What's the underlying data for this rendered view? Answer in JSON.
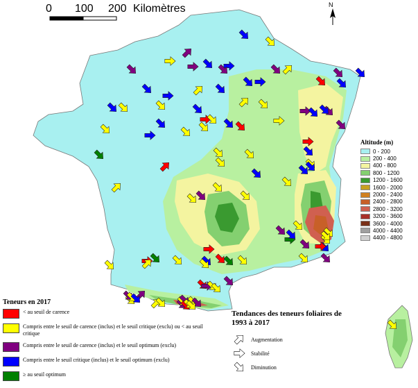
{
  "scale": {
    "ticks": [
      "0",
      "100",
      "200"
    ],
    "unit": "Kilomètres"
  },
  "north_label": "N",
  "altitude_legend": {
    "title": "Altitude (m)",
    "classes": [
      {
        "label": "0 - 200",
        "color": "#a8f0f0"
      },
      {
        "label": "200 - 400",
        "color": "#b8f0a0"
      },
      {
        "label": "400 - 800",
        "color": "#f4f4a0"
      },
      {
        "label": "800 - 1200",
        "color": "#84d070"
      },
      {
        "label": "1200 - 1600",
        "color": "#3a9a30"
      },
      {
        "label": "1600 - 2000",
        "color": "#c8a020"
      },
      {
        "label": "2000 - 2400",
        "color": "#d08020"
      },
      {
        "label": "2400 - 2800",
        "color": "#c86028"
      },
      {
        "label": "2800 - 3200",
        "color": "#d06050"
      },
      {
        "label": "3200 - 3600",
        "color": "#a83028"
      },
      {
        "label": "3600 - 4000",
        "color": "#7a3018"
      },
      {
        "label": "4000 - 4400",
        "color": "#a0a0a0"
      },
      {
        "label": "4400 - 4800",
        "color": "#d0d0d0"
      }
    ]
  },
  "category_legend": {
    "title": "Teneurs en 2017",
    "items": [
      {
        "key": "red",
        "color": "#ff0000",
        "text": "< au seuil de carence"
      },
      {
        "key": "yellow",
        "color": "#ffff00",
        "text": "Compris entre le seuil de carence (inclus) et le seuil critique (exclu) ou < au seuil critique"
      },
      {
        "key": "purple",
        "color": "#800080",
        "text": "Compris entre le seuil de carence (inclus) et le seuil optimum (exclu)"
      },
      {
        "key": "blue",
        "color": "#0000ff",
        "text": "Compris entre le seuil critique (inclus) et le seuil optimum (exclu)"
      },
      {
        "key": "green",
        "color": "#008000",
        "text": "≥ au seuil optimum"
      }
    ]
  },
  "trend_legend": {
    "title": "Tendances des teneurs foliaires de 1993 à 2017",
    "items": [
      {
        "key": "up",
        "label": "Augmentation"
      },
      {
        "key": "flat",
        "label": "Stabilité"
      },
      {
        "key": "down",
        "label": "Diminution"
      }
    ]
  },
  "colors": {
    "sea": "#ffffff",
    "lowland": "#a8f0f0",
    "border": "#777777"
  },
  "sites": [
    {
      "cat": "blue",
      "trend": "down"
    },
    {
      "cat": "yellow",
      "trend": "down"
    },
    {
      "cat": "purple",
      "trend": "down"
    },
    {
      "cat": "yellow",
      "trend": "flat"
    },
    {
      "cat": "purple",
      "trend": "up"
    },
    {
      "cat": "purple",
      "trend": "flat"
    },
    {
      "cat": "blue",
      "trend": "down"
    },
    {
      "cat": "blue",
      "trend": "flat"
    },
    {
      "cat": "purple",
      "trend": "down"
    },
    {
      "cat": "purple",
      "trend": "down"
    },
    {
      "cat": "yellow",
      "trend": "up"
    },
    {
      "cat": "red",
      "trend": "down"
    },
    {
      "cat": "purple",
      "trend": "down"
    },
    {
      "cat": "blue",
      "trend": "down"
    },
    {
      "cat": "blue",
      "trend": "down"
    },
    {
      "cat": "blue",
      "trend": "down"
    },
    {
      "cat": "blue",
      "trend": "flat"
    },
    {
      "cat": "yellow",
      "trend": "up"
    },
    {
      "cat": "blue",
      "trend": "down"
    },
    {
      "cat": "blue",
      "trend": "down"
    },
    {
      "cat": "blue",
      "trend": "flat"
    },
    {
      "cat": "yellow",
      "trend": "up"
    },
    {
      "cat": "blue",
      "trend": "down"
    },
    {
      "cat": "yellow",
      "trend": "down"
    },
    {
      "cat": "yellow",
      "trend": "down"
    },
    {
      "cat": "yellow",
      "trend": "down"
    },
    {
      "cat": "yellow",
      "trend": "down"
    },
    {
      "cat": "blue",
      "trend": "down"
    },
    {
      "cat": "yellow",
      "trend": "down"
    },
    {
      "cat": "red",
      "trend": "flat"
    },
    {
      "cat": "yellow",
      "trend": "down"
    },
    {
      "cat": "blue",
      "trend": "down"
    },
    {
      "cat": "blue",
      "trend": "flat"
    },
    {
      "cat": "blue",
      "trend": "down"
    },
    {
      "cat": "red",
      "trend": "down"
    },
    {
      "cat": "yellow",
      "trend": "down"
    },
    {
      "cat": "yellow",
      "trend": "flat"
    },
    {
      "cat": "purple",
      "trend": "flat"
    },
    {
      "cat": "blue",
      "trend": "down"
    },
    {
      "cat": "purple",
      "trend": "down"
    },
    {
      "cat": "blue",
      "trend": "down"
    },
    {
      "cat": "purple",
      "trend": "down"
    },
    {
      "cat": "green",
      "trend": "down"
    },
    {
      "cat": "yellow",
      "trend": "up"
    },
    {
      "cat": "red",
      "trend": "up"
    },
    {
      "cat": "yellow",
      "trend": "down"
    },
    {
      "cat": "yellow",
      "trend": "down"
    },
    {
      "cat": "yellow",
      "trend": "down"
    },
    {
      "cat": "blue",
      "trend": "down"
    },
    {
      "cat": "yellow",
      "trend": "down"
    },
    {
      "cat": "red",
      "trend": "flat"
    },
    {
      "cat": "blue",
      "trend": "down"
    },
    {
      "cat": "yellow",
      "trend": "down"
    },
    {
      "cat": "blue",
      "trend": "down"
    },
    {
      "cat": "blue",
      "trend": "down"
    },
    {
      "cat": "yellow",
      "trend": "down"
    },
    {
      "cat": "yellow",
      "trend": "down"
    },
    {
      "cat": "purple",
      "trend": "down"
    },
    {
      "cat": "yellow",
      "trend": "down"
    },
    {
      "cat": "red",
      "trend": "down"
    },
    {
      "cat": "green",
      "trend": "down"
    },
    {
      "cat": "red",
      "trend": "flat"
    },
    {
      "cat": "yellow",
      "trend": "down"
    },
    {
      "cat": "yellow",
      "trend": "up"
    },
    {
      "cat": "yellow",
      "trend": "down"
    },
    {
      "cat": "blue",
      "trend": "down"
    },
    {
      "cat": "red",
      "trend": "flat"
    },
    {
      "cat": "yellow",
      "trend": "down"
    },
    {
      "cat": "purple",
      "trend": "down"
    },
    {
      "cat": "yellow",
      "trend": "down"
    },
    {
      "cat": "green",
      "trend": "flat"
    },
    {
      "cat": "yellow",
      "trend": "down"
    },
    {
      "cat": "yellow",
      "trend": "down"
    },
    {
      "cat": "blue",
      "trend": "down"
    },
    {
      "cat": "purple",
      "trend": "down"
    },
    {
      "cat": "yellow",
      "trend": "up"
    },
    {
      "cat": "purple",
      "trend": "up"
    },
    {
      "cat": "yellow",
      "trend": "down"
    },
    {
      "cat": "purple",
      "trend": "down"
    },
    {
      "cat": "red",
      "trend": "down"
    },
    {
      "cat": "yellow",
      "trend": "down"
    },
    {
      "cat": "purple",
      "trend": "flat"
    },
    {
      "cat": "yellow",
      "trend": "down"
    },
    {
      "cat": "yellow",
      "trend": "down"
    },
    {
      "cat": "purple",
      "trend": "down"
    },
    {
      "cat": "yellow",
      "trend": "down"
    },
    {
      "cat": "yellow",
      "trend": "down"
    },
    {
      "cat": "red",
      "trend": "flat"
    },
    {
      "cat": "green",
      "trend": "down"
    },
    {
      "cat": "blue",
      "trend": "down"
    },
    {
      "cat": "purple",
      "trend": "down"
    },
    {
      "cat": "yellow",
      "trend": "down"
    },
    {
      "cat": "purple",
      "trend": "down"
    },
    {
      "cat": "yellow",
      "trend": "down"
    },
    {
      "cat": "yellow",
      "trend": "down"
    },
    {
      "cat": "purple",
      "trend": "down"
    },
    {
      "cat": "purple",
      "trend": "down"
    },
    {
      "cat": "red",
      "trend": "down"
    },
    {
      "cat": "yellow",
      "trend": "down"
    },
    {
      "cat": "yellow",
      "trend": "down"
    },
    {
      "cat": "yellow",
      "trend": "down"
    },
    {
      "cat": "blue",
      "trend": "down"
    },
    {
      "cat": "yellow",
      "trend": "down"
    }
  ]
}
